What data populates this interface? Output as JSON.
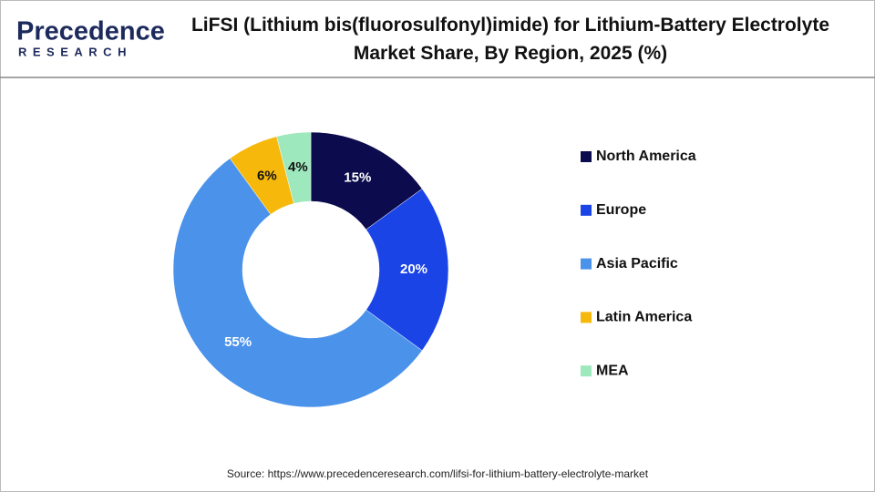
{
  "logo": {
    "name": "Precedence",
    "tagline": "RESEARCH"
  },
  "chart_data": {
    "type": "pie",
    "title": "LiFSI (Lithium bis(fluorosulfonyl)imide) for Lithium-Battery Electrolyte Market Share, By Region, 2025 (%)",
    "categories": [
      "North America",
      "Europe",
      "Asia Pacific",
      "Latin America",
      "MEA"
    ],
    "values": [
      15,
      20,
      55,
      6,
      4
    ],
    "value_labels": [
      "15%",
      "20%",
      "55%",
      "6%",
      "4%"
    ],
    "colors": [
      "#0b0b4d",
      "#1a44e6",
      "#4a92ea",
      "#f6b80a",
      "#9de8bc"
    ],
    "label_colors": [
      "#ffffff",
      "#ffffff",
      "#ffffff",
      "#111111",
      "#111111"
    ],
    "donut": true,
    "source": "Source: https://www.precedenceresearch.com/lifsi-for-lithium-battery-electrolyte-market"
  }
}
